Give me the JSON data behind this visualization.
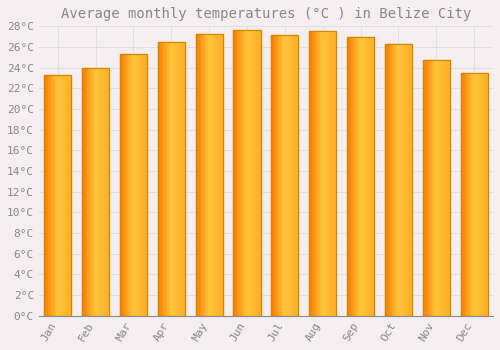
{
  "months": [
    "Jan",
    "Feb",
    "Mar",
    "Apr",
    "May",
    "Jun",
    "Jul",
    "Aug",
    "Sep",
    "Oct",
    "Nov",
    "Dec"
  ],
  "values": [
    23.3,
    24.0,
    25.3,
    26.5,
    27.3,
    27.6,
    27.2,
    27.5,
    27.0,
    26.3,
    24.7,
    23.5
  ],
  "bar_color_face": "#FFA500",
  "bar_color_light": "#FFD060",
  "bar_color_edge": "#CC8800",
  "title": "Average monthly temperatures (°C ) in Belize City",
  "ylim": [
    0,
    28
  ],
  "ytick_step": 2,
  "background_color": "#F5EEF0",
  "plot_bg_color": "#F5EEF0",
  "grid_color": "#DDDDDD",
  "title_fontsize": 10,
  "tick_fontsize": 8,
  "font_color": "#888888"
}
